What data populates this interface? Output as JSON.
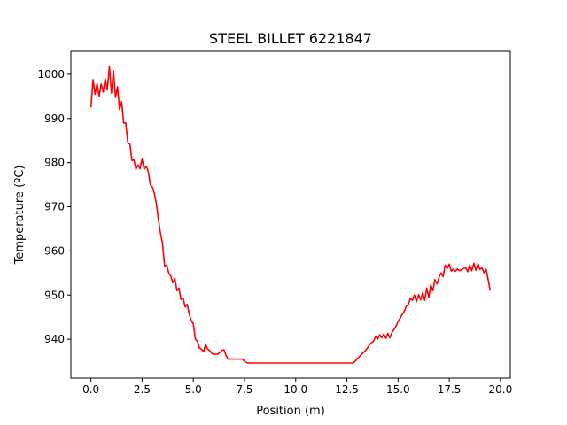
{
  "chart_data": {
    "type": "line",
    "title": "STEEL BILLET 6221847",
    "xlabel": "Position (m)",
    "ylabel": "Temperature (ºC)",
    "xlim": [
      -0.98,
      20.48
    ],
    "ylim": [
      931.2,
      1005.2
    ],
    "xticks": [
      0.0,
      2.5,
      5.0,
      7.5,
      10.0,
      12.5,
      15.0,
      17.5,
      20.0
    ],
    "xtick_labels": [
      "0.0",
      "2.5",
      "5.0",
      "7.5",
      "10.0",
      "12.5",
      "15.0",
      "17.5",
      "20.0"
    ],
    "yticks": [
      940,
      950,
      960,
      970,
      980,
      990,
      1000
    ],
    "ytick_labels": [
      "940",
      "950",
      "960",
      "970",
      "980",
      "990",
      "1000"
    ],
    "grid": false,
    "series": [
      {
        "color": "#ff0000",
        "x": [
          0.0,
          0.1,
          0.2,
          0.3,
          0.4,
          0.5,
          0.6,
          0.7,
          0.8,
          0.9,
          1.0,
          1.1,
          1.2,
          1.3,
          1.4,
          1.5,
          1.6,
          1.7,
          1.8,
          1.9,
          2.0,
          2.1,
          2.2,
          2.3,
          2.4,
          2.5,
          2.6,
          2.7,
          2.8,
          2.9,
          3.0,
          3.1,
          3.2,
          3.3,
          3.4,
          3.5,
          3.6,
          3.7,
          3.8,
          3.9,
          4.0,
          4.1,
          4.2,
          4.3,
          4.4,
          4.5,
          4.6,
          4.7,
          4.8,
          4.9,
          5.0,
          5.1,
          5.2,
          5.3,
          5.4,
          5.5,
          5.6,
          5.7,
          5.8,
          5.9,
          6.0,
          6.2,
          6.4,
          6.5,
          6.6,
          6.7,
          6.8,
          6.9,
          7.0,
          7.2,
          7.4,
          7.5,
          7.6,
          7.7,
          8.0,
          9.0,
          10.0,
          11.0,
          12.0,
          12.8,
          12.9,
          13.0,
          13.1,
          13.2,
          13.3,
          13.4,
          13.5,
          13.6,
          13.7,
          13.8,
          13.9,
          14.0,
          14.1,
          14.2,
          14.3,
          14.4,
          14.5,
          14.6,
          14.7,
          14.8,
          14.9,
          15.0,
          15.1,
          15.2,
          15.3,
          15.4,
          15.5,
          15.6,
          15.7,
          15.8,
          15.9,
          16.0,
          16.1,
          16.2,
          16.3,
          16.4,
          16.5,
          16.6,
          16.7,
          16.8,
          16.9,
          17.0,
          17.1,
          17.2,
          17.3,
          17.4,
          17.5,
          17.6,
          17.7,
          17.8,
          17.9,
          18.0,
          18.1,
          18.2,
          18.3,
          18.4,
          18.5,
          18.6,
          18.7,
          18.8,
          18.9,
          19.0,
          19.1,
          19.2,
          19.3,
          19.4,
          19.5
        ],
        "values": [
          992.5,
          998.8,
          995.5,
          997.9,
          995.0,
          997.8,
          996.0,
          999.0,
          996.5,
          1001.8,
          995.8,
          1000.8,
          994.8,
          997.2,
          992.0,
          993.8,
          989.0,
          989.0,
          984.5,
          984.2,
          980.5,
          980.6,
          978.5,
          979.5,
          978.6,
          980.8,
          978.5,
          979.2,
          978.0,
          975.0,
          974.5,
          973.0,
          970.5,
          967.0,
          964.0,
          961.5,
          956.5,
          956.8,
          955.0,
          954.3,
          952.8,
          953.8,
          951.0,
          951.6,
          949.0,
          949.3,
          947.3,
          947.9,
          945.7,
          944.2,
          943.5,
          940.0,
          939.6,
          938.0,
          937.7,
          937.2,
          938.8,
          937.8,
          937.4,
          936.8,
          936.6,
          936.6,
          937.5,
          937.6,
          936.3,
          935.5,
          935.5,
          935.5,
          935.5,
          935.5,
          935.5,
          935.0,
          934.7,
          934.6,
          934.6,
          934.6,
          934.6,
          934.6,
          934.6,
          934.6,
          935.0,
          935.6,
          936.0,
          936.5,
          937.0,
          937.4,
          938.0,
          938.7,
          939.2,
          939.5,
          940.6,
          940.0,
          941.0,
          940.3,
          941.2,
          940.2,
          941.3,
          940.3,
          941.5,
          942.2,
          943.0,
          944.0,
          944.8,
          945.6,
          946.3,
          947.5,
          947.8,
          949.3,
          948.8,
          950.0,
          948.5,
          950.1,
          948.9,
          950.5,
          948.8,
          951.6,
          949.5,
          952.3,
          951.0,
          953.5,
          952.5,
          954.0,
          955.0,
          954.2,
          956.8,
          956.0,
          957.0,
          955.4,
          955.9,
          955.4,
          955.9,
          955.5,
          955.8,
          956.0,
          956.2,
          955.3,
          956.8,
          955.5,
          957.2,
          955.6,
          957.1,
          955.8,
          956.2,
          955.0,
          955.8,
          953.5,
          951.0
        ]
      }
    ]
  }
}
